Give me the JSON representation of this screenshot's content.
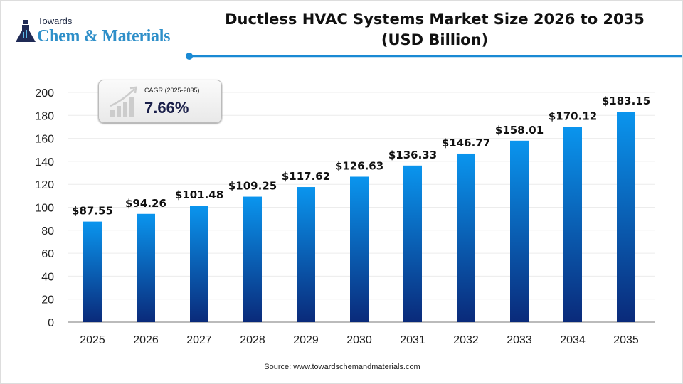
{
  "logo": {
    "top": "Towards",
    "main": "Chem & Materials"
  },
  "cagr": {
    "label": "CAGR (2025-2035)",
    "value": "7.66%"
  },
  "source": "Source: www.towardschemandmaterials.com",
  "colors": {
    "bar_top": "#0a95ee",
    "bar_bottom": "#0a2a7a",
    "accent": "#1a8ad4"
  },
  "chart_data": {
    "type": "bar",
    "title": "Ductless HVAC Systems Market Size 2026 to 2035 (USD Billion)",
    "title_lines": [
      "Ductless HVAC Systems Market Size 2026 to 2035",
      "(USD Billion)"
    ],
    "categories": [
      "2025",
      "2026",
      "2027",
      "2028",
      "2029",
      "2030",
      "2031",
      "2032",
      "2033",
      "2034",
      "2035"
    ],
    "values": [
      87.55,
      94.26,
      101.48,
      109.25,
      117.62,
      126.63,
      136.33,
      146.77,
      158.01,
      170.12,
      183.15
    ],
    "data_labels": [
      "$87.55",
      "$94.26",
      "$101.48",
      "$109.25",
      "$117.62",
      "$126.63",
      "$136.33",
      "$146.77",
      "$158.01",
      "$170.12",
      "$183.15"
    ],
    "ylim": [
      0,
      200
    ],
    "yticks": [
      "0",
      "20",
      "40",
      "60",
      "80",
      "100",
      "120",
      "140",
      "160",
      "180",
      "200"
    ],
    "grid": true,
    "xlabel": "",
    "ylabel": ""
  }
}
